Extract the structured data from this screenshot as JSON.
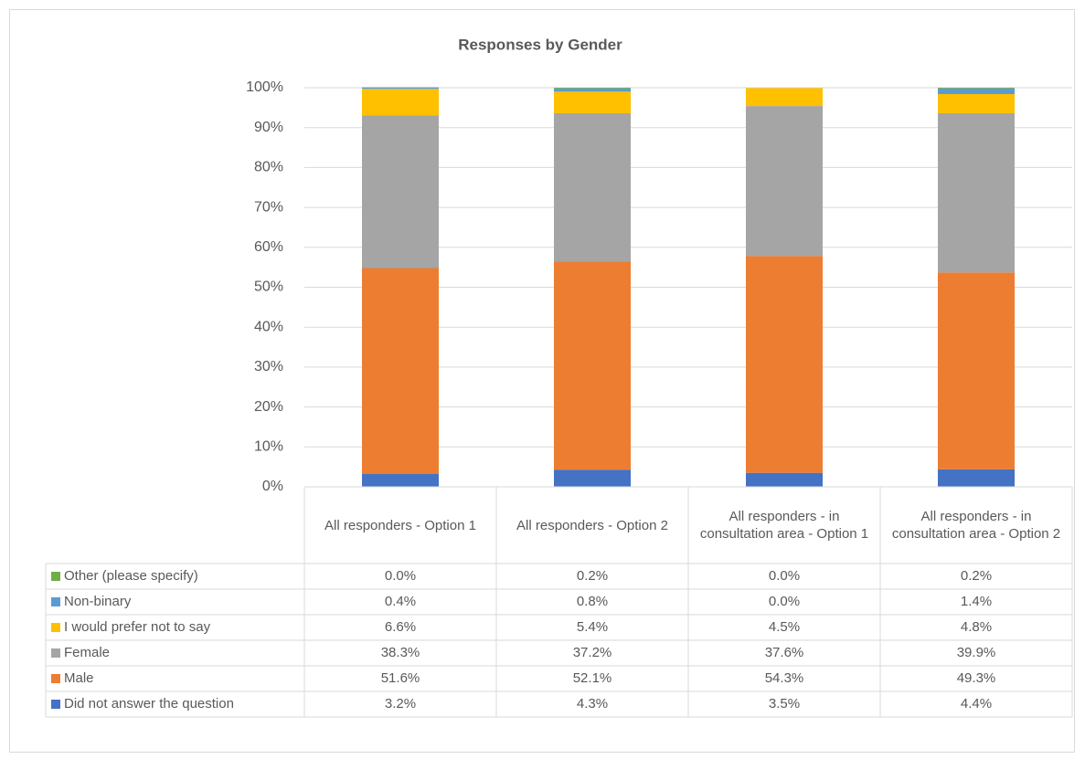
{
  "chart_data": {
    "type": "stacked_bar",
    "title": "Responses by Gender",
    "categories": [
      "All responders - Option 1",
      "All responders - Option 2",
      "All responders - in consultation area - Option 1",
      "All responders - in consultation area - Option 2"
    ],
    "series": [
      {
        "name": "Did not answer the question",
        "color": "#4472c4",
        "values": [
          3.2,
          4.3,
          3.5,
          4.4
        ],
        "value_labels": [
          "3.2%",
          "4.3%",
          "3.5%",
          "4.4%"
        ]
      },
      {
        "name": "Male",
        "color": "#ed7d31",
        "values": [
          51.6,
          52.1,
          54.3,
          49.3
        ],
        "value_labels": [
          "51.6%",
          "52.1%",
          "54.3%",
          "49.3%"
        ]
      },
      {
        "name": "Female",
        "color": "#a5a5a5",
        "values": [
          38.3,
          37.2,
          37.6,
          39.9
        ],
        "value_labels": [
          "38.3%",
          "37.2%",
          "37.6%",
          "39.9%"
        ]
      },
      {
        "name": "I would prefer not to say",
        "color": "#ffc000",
        "values": [
          6.6,
          5.4,
          4.5,
          4.8
        ],
        "value_labels": [
          "6.6%",
          "5.4%",
          "4.5%",
          "4.8%"
        ]
      },
      {
        "name": "Non-binary",
        "color": "#5b9bd5",
        "values": [
          0.4,
          0.8,
          0.0,
          1.4
        ],
        "value_labels": [
          "0.4%",
          "0.8%",
          "0.0%",
          "1.4%"
        ]
      },
      {
        "name": "Other (please specify)",
        "color": "#70ad47",
        "values": [
          0.0,
          0.2,
          0.0,
          0.2
        ],
        "value_labels": [
          "0.0%",
          "0.2%",
          "0.0%",
          "0.2%"
        ]
      }
    ],
    "ylim": [
      0,
      100
    ],
    "yticks": [
      {
        "value": 0,
        "label": "0%"
      },
      {
        "value": 10,
        "label": "10%"
      },
      {
        "value": 20,
        "label": "20%"
      },
      {
        "value": 30,
        "label": "30%"
      },
      {
        "value": 40,
        "label": "40%"
      },
      {
        "value": 50,
        "label": "50%"
      },
      {
        "value": 60,
        "label": "60%"
      },
      {
        "value": 70,
        "label": "70%"
      },
      {
        "value": 80,
        "label": "80%"
      },
      {
        "value": 90,
        "label": "90%"
      },
      {
        "value": 100,
        "label": "100%"
      }
    ],
    "grid": true
  }
}
